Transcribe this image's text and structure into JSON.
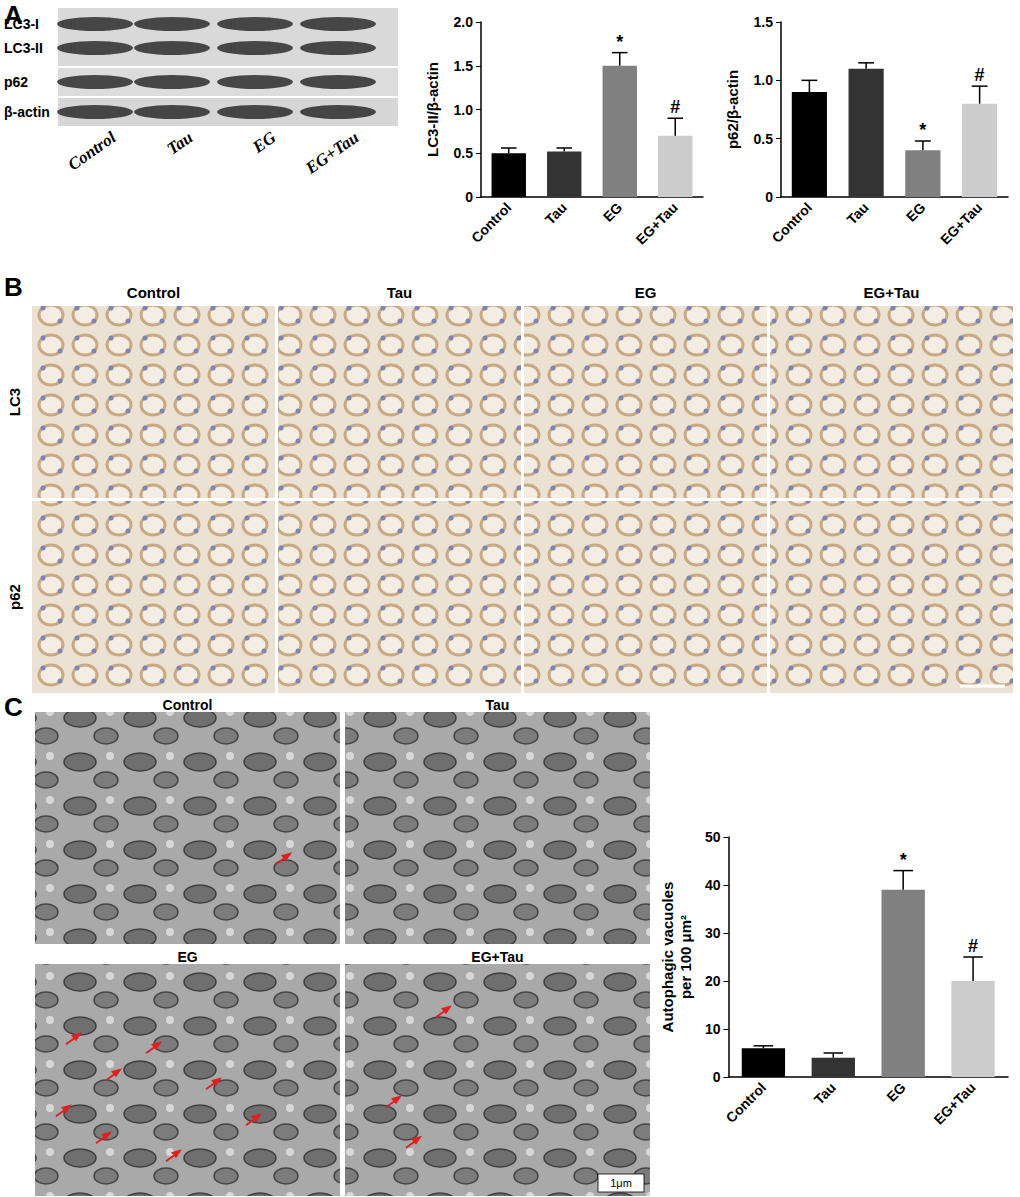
{
  "panels": {
    "A": {
      "label": "A",
      "blot_rows": [
        "LC3-I",
        "LC3-II",
        "p62",
        "β-actin"
      ],
      "lanes": [
        "Control",
        "Tau",
        "EG",
        "EG+Tau"
      ]
    },
    "B": {
      "label": "B",
      "columns": [
        "Control",
        "Tau",
        "EG",
        "EG+Tau"
      ],
      "rows": [
        "LC3",
        "p62"
      ]
    },
    "C": {
      "label": "C",
      "images": [
        "Control",
        "Tau",
        "EG",
        "EG+Tau"
      ],
      "scale_bar": "1μm"
    }
  },
  "chart_data": [
    {
      "type": "bar",
      "ylabel": "LC3-II/β-actin",
      "categories": [
        "Control",
        "Tau",
        "EG",
        "EG+Tau"
      ],
      "values": [
        0.5,
        0.52,
        1.5,
        0.7
      ],
      "errors": [
        0.06,
        0.04,
        0.15,
        0.2
      ],
      "annotations": [
        null,
        null,
        "*",
        "#"
      ],
      "colors": [
        "#000000",
        "#333333",
        "#808080",
        "#cccccc"
      ],
      "ylim": [
        0,
        2
      ],
      "yticks": [
        0,
        0.5,
        {
          "value": 1,
          "label": "1.0"
        },
        1.5,
        {
          "value": 2,
          "label": "2.0"
        }
      ],
      "grid": false
    },
    {
      "type": "bar",
      "ylabel": "p62/β-actin",
      "categories": [
        "Control",
        "Tau",
        "EG",
        "EG+Tau"
      ],
      "values": [
        0.9,
        1.1,
        0.4,
        0.8
      ],
      "errors": [
        0.1,
        0.05,
        0.08,
        0.15
      ],
      "annotations": [
        null,
        null,
        "*",
        "#"
      ],
      "colors": [
        "#000000",
        "#333333",
        "#808080",
        "#cccccc"
      ],
      "ylim": [
        0,
        1.5
      ],
      "yticks": [
        0,
        0.5,
        {
          "value": 1,
          "label": "1.0"
        },
        1.5
      ],
      "grid": false
    },
    {
      "type": "bar",
      "ylabel": "Autophagic vacuoles\nper 100 μm²",
      "categories": [
        "Control",
        "Tau",
        "EG",
        "EG+Tau"
      ],
      "values": [
        6,
        4,
        39,
        20
      ],
      "errors": [
        0.5,
        1,
        4,
        5
      ],
      "annotations": [
        null,
        null,
        "*",
        "#"
      ],
      "colors": [
        "#000000",
        "#333333",
        "#808080",
        "#cccccc"
      ],
      "ylim": [
        0,
        50
      ],
      "yticks": [
        0,
        10,
        20,
        30,
        40,
        50
      ],
      "grid": false
    }
  ]
}
